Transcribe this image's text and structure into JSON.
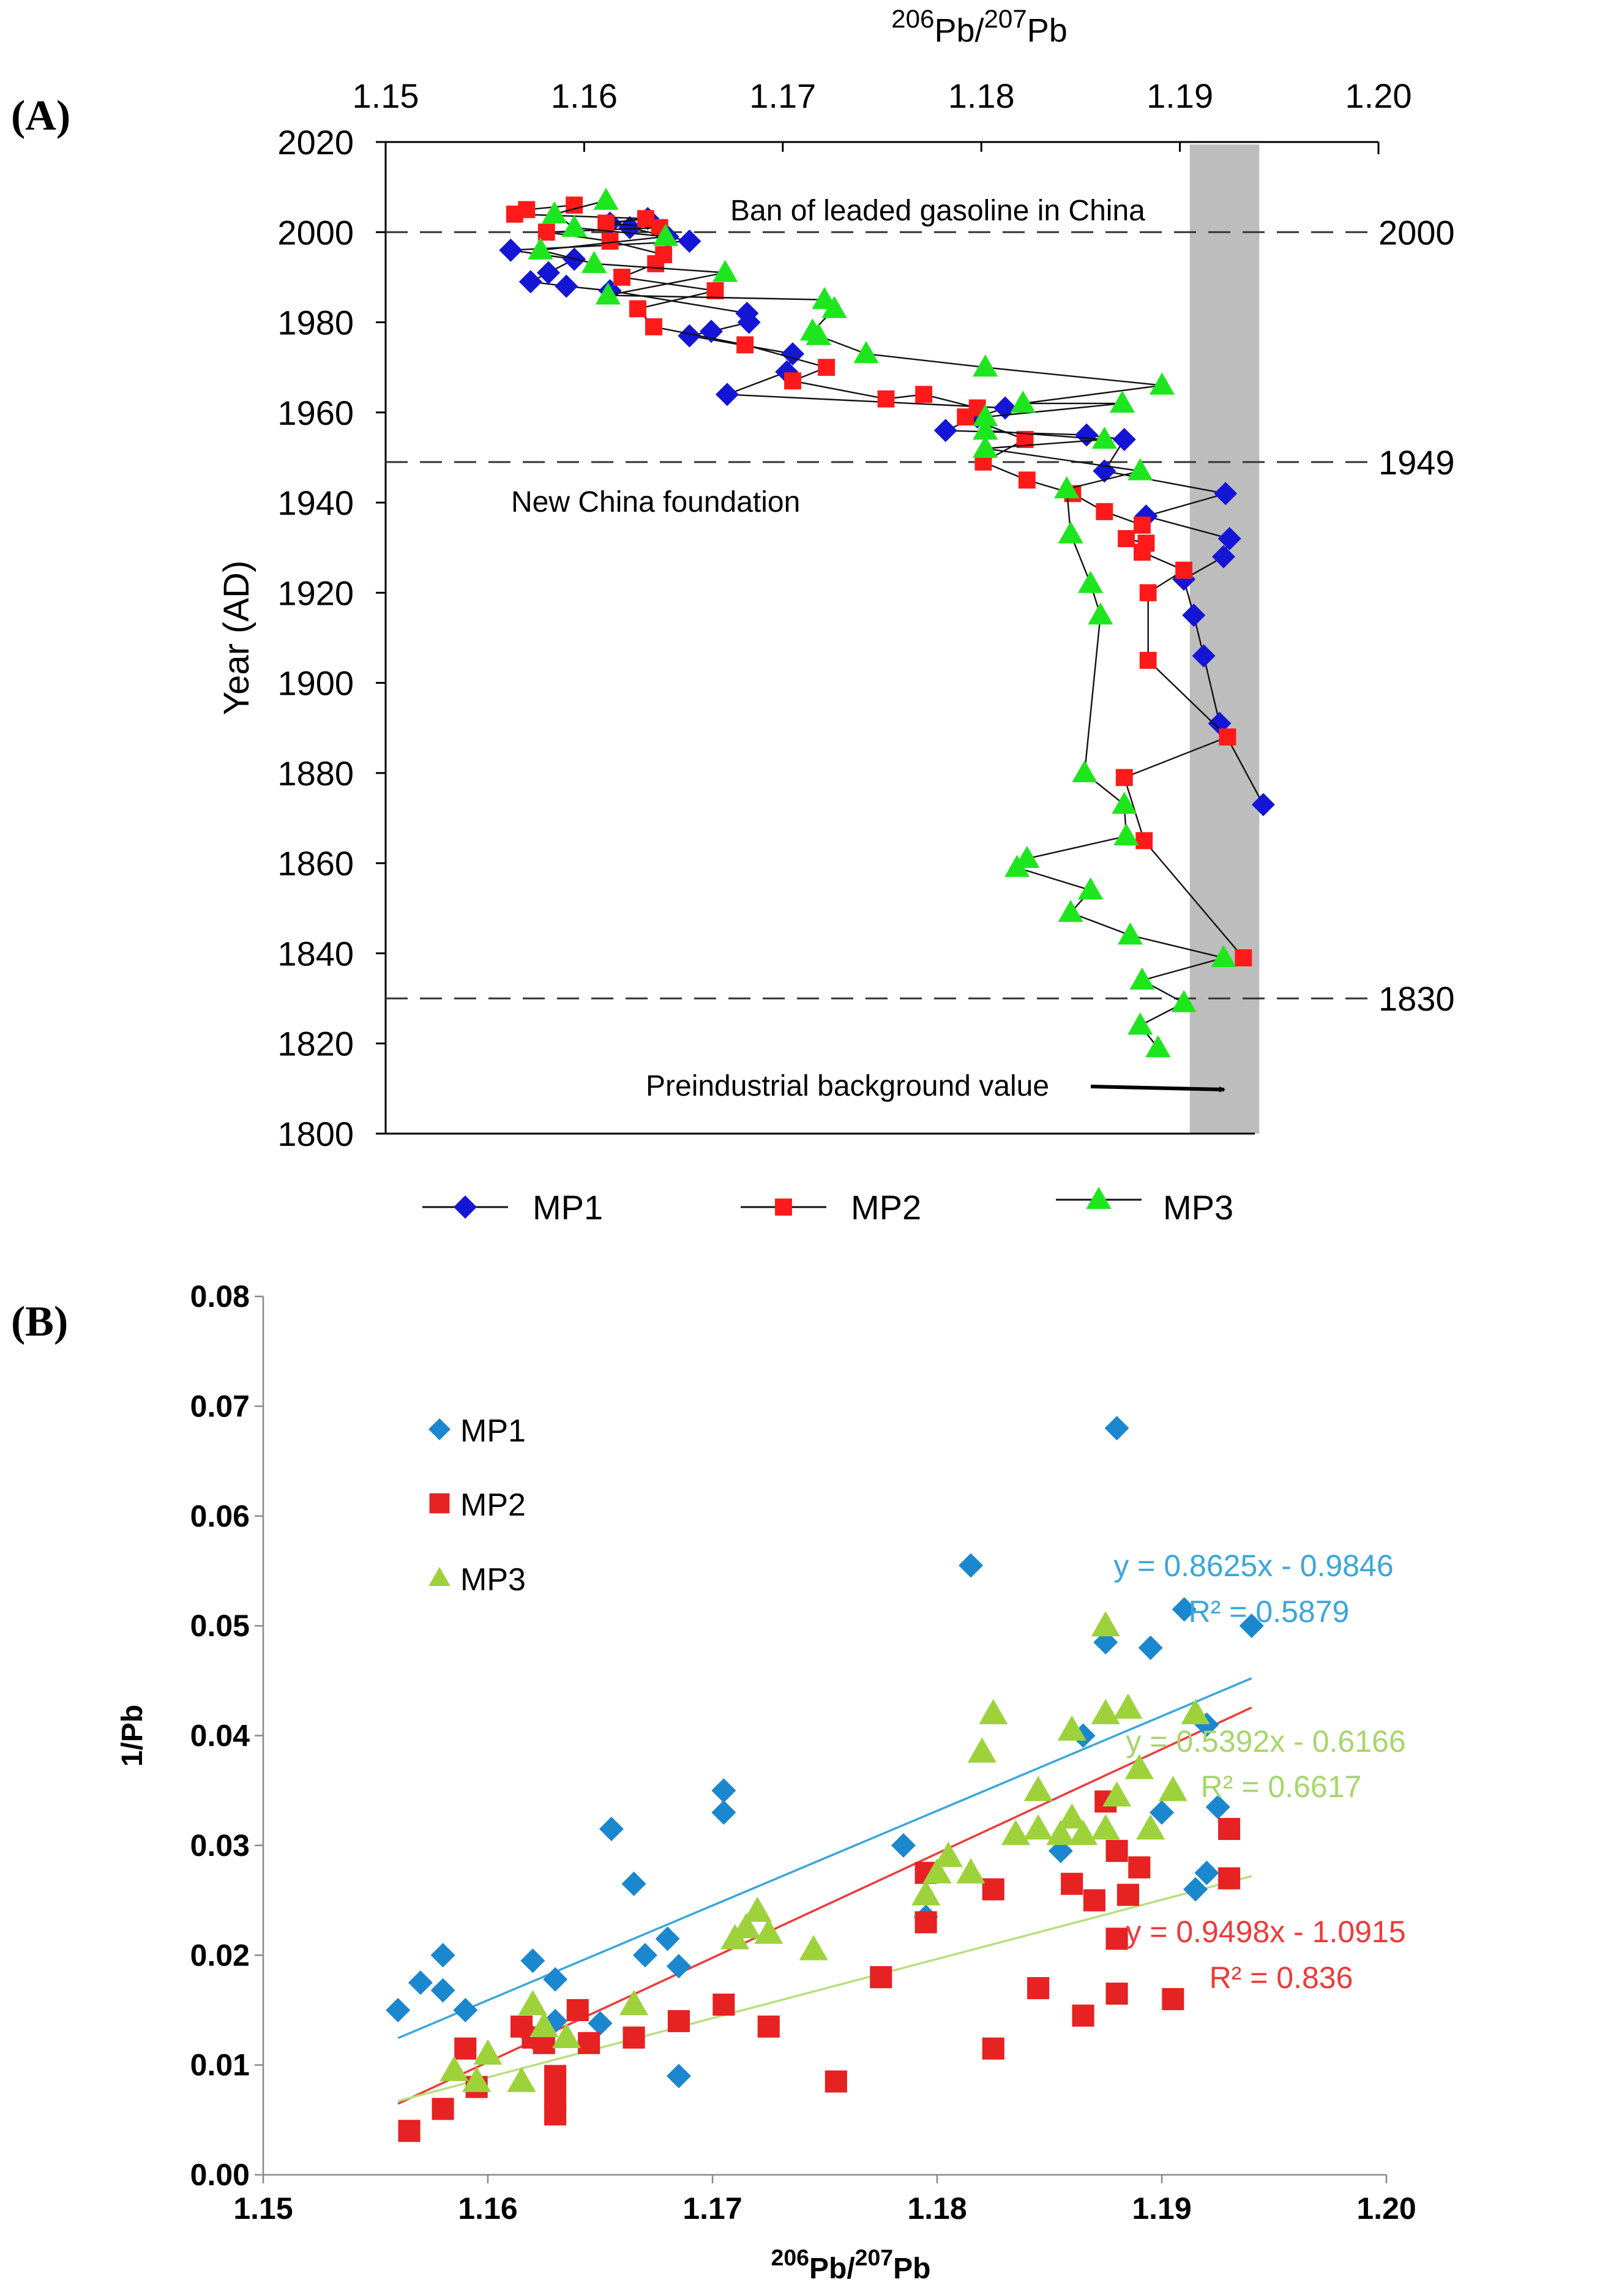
{
  "chart_data": [
    {
      "panel": "(A)",
      "type": "line",
      "x_axis_label_parts": [
        "206",
        "Pb/",
        "207",
        "Pb"
      ],
      "x_position": "top",
      "xlim": [
        1.15,
        1.2
      ],
      "x_ticks": [
        "1.15",
        "1.16",
        "1.17",
        "1.18",
        "1.19",
        "1.20"
      ],
      "ylabel": "Year (AD)",
      "ylim": [
        1800,
        2020
      ],
      "y_ticks": [
        "2020",
        "2000",
        "1980",
        "1960",
        "1940",
        "1920",
        "1900",
        "1880",
        "1860",
        "1840",
        "1820",
        "1800"
      ],
      "shaded_band": {
        "x_range": [
          1.1905,
          1.194
        ]
      },
      "reference_lines": [
        {
          "year": 2000,
          "right_label": "2000",
          "annotation": "Ban of leaded gasoline in China"
        },
        {
          "year": 1949,
          "right_label": "1949",
          "annotation": "New China foundation"
        },
        {
          "year": 1830,
          "right_label": "1830",
          "annotation": ""
        }
      ],
      "arrow_annotation": {
        "text": "Preindustrial background value",
        "from": [
          1.1855,
          1811
        ],
        "to": [
          1.1905,
          1810
        ]
      },
      "legend": {
        "placement": "bottom"
      },
      "series": [
        {
          "name": "MP1",
          "marker": "diamond",
          "color": "#1515d6",
          "points": [
            [
              1.1632,
              2003
            ],
            [
              1.1613,
              2002
            ],
            [
              1.1623,
              2001
            ],
            [
              1.1642,
              1999
            ],
            [
              1.1653,
              1998
            ],
            [
              1.1563,
              1996
            ],
            [
              1.1595,
              1994
            ],
            [
              1.1582,
              1991
            ],
            [
              1.1573,
              1989
            ],
            [
              1.1591,
              1988
            ],
            [
              1.1613,
              1987
            ],
            [
              1.1682,
              1982
            ],
            [
              1.1683,
              1980
            ],
            [
              1.1664,
              1978
            ],
            [
              1.1653,
              1977
            ],
            [
              1.1705,
              1973
            ],
            [
              1.1702,
              1969
            ],
            [
              1.1672,
              1964
            ],
            [
              1.1812,
              1961
            ],
            [
              1.1798,
              1959
            ],
            [
              1.1782,
              1956
            ],
            [
              1.1853,
              1955
            ],
            [
              1.1872,
              1954
            ],
            [
              1.1862,
              1947
            ],
            [
              1.1923,
              1942
            ],
            [
              1.1883,
              1937
            ],
            [
              1.1925,
              1932
            ],
            [
              1.1922,
              1928
            ],
            [
              1.1902,
              1923
            ],
            [
              1.1907,
              1915
            ],
            [
              1.1912,
              1906
            ],
            [
              1.192,
              1891
            ],
            [
              1.1942,
              1873
            ]
          ]
        },
        {
          "name": "MP2",
          "marker": "square",
          "color": "#ff1a1a",
          "points": [
            [
              1.1595,
              2006
            ],
            [
              1.1571,
              2005
            ],
            [
              1.1565,
              2004
            ],
            [
              1.1631,
              2003
            ],
            [
              1.1611,
              2002
            ],
            [
              1.1638,
              2001
            ],
            [
              1.1581,
              2000
            ],
            [
              1.1613,
              1998
            ],
            [
              1.164,
              1995
            ],
            [
              1.1636,
              1993
            ],
            [
              1.1619,
              1990
            ],
            [
              1.1666,
              1987
            ],
            [
              1.1627,
              1983
            ],
            [
              1.1635,
              1979
            ],
            [
              1.1681,
              1975
            ],
            [
              1.1722,
              1970
            ],
            [
              1.1705,
              1967
            ],
            [
              1.1752,
              1963
            ],
            [
              1.1771,
              1964
            ],
            [
              1.1798,
              1961
            ],
            [
              1.1792,
              1959
            ],
            [
              1.1822,
              1954
            ],
            [
              1.1801,
              1949
            ],
            [
              1.1823,
              1945
            ],
            [
              1.1846,
              1942
            ],
            [
              1.1862,
              1938
            ],
            [
              1.1881,
              1935
            ],
            [
              1.1873,
              1932
            ],
            [
              1.1883,
              1931
            ],
            [
              1.1881,
              1929
            ],
            [
              1.1902,
              1925
            ],
            [
              1.1884,
              1920
            ],
            [
              1.1884,
              1905
            ],
            [
              1.1924,
              1888
            ],
            [
              1.1872,
              1879
            ],
            [
              1.1882,
              1865
            ],
            [
              1.1932,
              1839
            ]
          ]
        },
        {
          "name": "MP3",
          "marker": "triangle",
          "color": "#1ee61e",
          "points": [
            [
              1.1611,
              2007
            ],
            [
              1.1585,
              2004
            ],
            [
              1.1595,
              2001
            ],
            [
              1.1641,
              1999
            ],
            [
              1.1578,
              1996
            ],
            [
              1.1605,
              1993
            ],
            [
              1.1671,
              1991
            ],
            [
              1.1612,
              1986
            ],
            [
              1.1721,
              1985
            ],
            [
              1.1726,
              1983
            ],
            [
              1.1715,
              1978
            ],
            [
              1.1718,
              1977
            ],
            [
              1.1742,
              1973
            ],
            [
              1.1802,
              1970
            ],
            [
              1.1891,
              1966
            ],
            [
              1.1821,
              1962
            ],
            [
              1.1871,
              1962
            ],
            [
              1.1802,
              1959
            ],
            [
              1.1802,
              1956
            ],
            [
              1.1862,
              1954
            ],
            [
              1.1802,
              1952
            ],
            [
              1.188,
              1947
            ],
            [
              1.1843,
              1943
            ],
            [
              1.1845,
              1933
            ],
            [
              1.1855,
              1922
            ],
            [
              1.186,
              1915
            ],
            [
              1.1852,
              1880
            ],
            [
              1.1872,
              1873
            ],
            [
              1.1873,
              1866
            ],
            [
              1.1823,
              1861
            ],
            [
              1.1818,
              1859
            ],
            [
              1.1855,
              1854
            ],
            [
              1.1845,
              1849
            ],
            [
              1.1875,
              1844
            ],
            [
              1.1922,
              1839
            ],
            [
              1.1881,
              1834
            ],
            [
              1.1902,
              1829
            ],
            [
              1.188,
              1824
            ],
            [
              1.1889,
              1819
            ]
          ]
        }
      ]
    },
    {
      "panel": "(B)",
      "type": "scatter",
      "x_axis_label_parts": [
        "206",
        "Pb/",
        "207",
        "Pb"
      ],
      "xlim": [
        1.15,
        1.2
      ],
      "x_ticks": [
        "1.15",
        "1.16",
        "1.17",
        "1.18",
        "1.19",
        "1.20"
      ],
      "ylabel": "1/Pb",
      "ylim": [
        0,
        0.08
      ],
      "y_ticks": [
        "0.00",
        "0.01",
        "0.02",
        "0.03",
        "0.04",
        "0.05",
        "0.06",
        "0.07",
        "0.08"
      ],
      "legend": {
        "placement": "top-left"
      },
      "series": [
        {
          "name": "MP1",
          "marker": "diamond",
          "color": "#1a87cf",
          "trendline": {
            "equation": "y = 0.8625x - 0.9846",
            "r2": "R² = 0.5879",
            "slope": 0.8625,
            "intercept": -0.9846,
            "color": "#3aa6dc"
          },
          "points": [
            [
              1.156,
              0.015
            ],
            [
              1.157,
              0.0175
            ],
            [
              1.158,
              0.0168
            ],
            [
              1.158,
              0.02
            ],
            [
              1.159,
              0.015
            ],
            [
              1.162,
              0.0195
            ],
            [
              1.162,
              0.0125
            ],
            [
              1.163,
              0.014
            ],
            [
              1.163,
              0.0178
            ],
            [
              1.165,
              0.0138
            ],
            [
              1.1655,
              0.0315
            ],
            [
              1.1665,
              0.0265
            ],
            [
              1.167,
              0.02
            ],
            [
              1.168,
              0.0215
            ],
            [
              1.1685,
              0.019
            ],
            [
              1.1685,
              0.009
            ],
            [
              1.1705,
              0.035
            ],
            [
              1.1705,
              0.033
            ],
            [
              1.1785,
              0.03
            ],
            [
              1.1795,
              0.0235
            ],
            [
              1.1815,
              0.0555
            ],
            [
              1.1855,
              0.0295
            ],
            [
              1.1865,
              0.04
            ],
            [
              1.1875,
              0.0485
            ],
            [
              1.188,
              0.068
            ],
            [
              1.1895,
              0.048
            ],
            [
              1.19,
              0.033
            ],
            [
              1.191,
              0.0515
            ],
            [
              1.1915,
              0.026
            ],
            [
              1.192,
              0.041
            ],
            [
              1.192,
              0.0275
            ],
            [
              1.1925,
              0.0335
            ],
            [
              1.194,
              0.05
            ]
          ]
        },
        {
          "name": "MP2",
          "marker": "square",
          "color": "#e62222",
          "trendline": {
            "equation": "y = 0.9498x - 1.0915",
            "r2": "R² = 0.836",
            "slope": 0.9498,
            "intercept": -1.0915,
            "color": "#ee3a3a"
          },
          "points": [
            [
              1.1565,
              0.004
            ],
            [
              1.158,
              0.006
            ],
            [
              1.159,
              0.0115
            ],
            [
              1.1595,
              0.008
            ],
            [
              1.1615,
              0.0135
            ],
            [
              1.162,
              0.0125
            ],
            [
              1.1625,
              0.012
            ],
            [
              1.163,
              0.009
            ],
            [
              1.163,
              0.007
            ],
            [
              1.163,
              0.0055
            ],
            [
              1.164,
              0.015
            ],
            [
              1.1645,
              0.012
            ],
            [
              1.1665,
              0.0125
            ],
            [
              1.1685,
              0.014
            ],
            [
              1.1705,
              0.0155
            ],
            [
              1.1725,
              0.0135
            ],
            [
              1.1755,
              0.0085
            ],
            [
              1.1775,
              0.018
            ],
            [
              1.1795,
              0.0275
            ],
            [
              1.1795,
              0.023
            ],
            [
              1.1825,
              0.026
            ],
            [
              1.1825,
              0.0115
            ],
            [
              1.1845,
              0.017
            ],
            [
              1.186,
              0.0265
            ],
            [
              1.1865,
              0.0145
            ],
            [
              1.187,
              0.025
            ],
            [
              1.1875,
              0.034
            ],
            [
              1.188,
              0.0295
            ],
            [
              1.188,
              0.0165
            ],
            [
              1.188,
              0.0215
            ],
            [
              1.1885,
              0.0255
            ],
            [
              1.189,
              0.028
            ],
            [
              1.1905,
              0.016
            ],
            [
              1.193,
              0.0315
            ],
            [
              1.193,
              0.027
            ]
          ]
        },
        {
          "name": "MP3",
          "marker": "triangle",
          "color": "#9dd23b",
          "trendline": {
            "equation": "y = 0.5392x - 0.6166",
            "r2": "R² = 0.6617",
            "slope": 0.5392,
            "intercept": -0.6166,
            "color": "#b6e07c"
          },
          "points": [
            [
              1.1585,
              0.0095
            ],
            [
              1.1595,
              0.0085
            ],
            [
              1.16,
              0.011
            ],
            [
              1.1615,
              0.0085
            ],
            [
              1.162,
              0.0155
            ],
            [
              1.1625,
              0.0135
            ],
            [
              1.1635,
              0.0125
            ],
            [
              1.1665,
              0.0155
            ],
            [
              1.171,
              0.0215
            ],
            [
              1.1715,
              0.0225
            ],
            [
              1.172,
              0.024
            ],
            [
              1.1725,
              0.022
            ],
            [
              1.1745,
              0.0205
            ],
            [
              1.1795,
              0.0255
            ],
            [
              1.18,
              0.0275
            ],
            [
              1.1805,
              0.029
            ],
            [
              1.1815,
              0.0275
            ],
            [
              1.182,
              0.0385
            ],
            [
              1.1825,
              0.042
            ],
            [
              1.1835,
              0.031
            ],
            [
              1.1845,
              0.0315
            ],
            [
              1.1845,
              0.035
            ],
            [
              1.1855,
              0.031
            ],
            [
              1.186,
              0.0405
            ],
            [
              1.186,
              0.0325
            ],
            [
              1.1865,
              0.031
            ],
            [
              1.1875,
              0.0315
            ],
            [
              1.1875,
              0.05
            ],
            [
              1.1875,
              0.042
            ],
            [
              1.188,
              0.0345
            ],
            [
              1.1885,
              0.0425
            ],
            [
              1.189,
              0.037
            ],
            [
              1.1895,
              0.0315
            ],
            [
              1.1905,
              0.035
            ],
            [
              1.1915,
              0.042
            ]
          ]
        }
      ]
    }
  ]
}
